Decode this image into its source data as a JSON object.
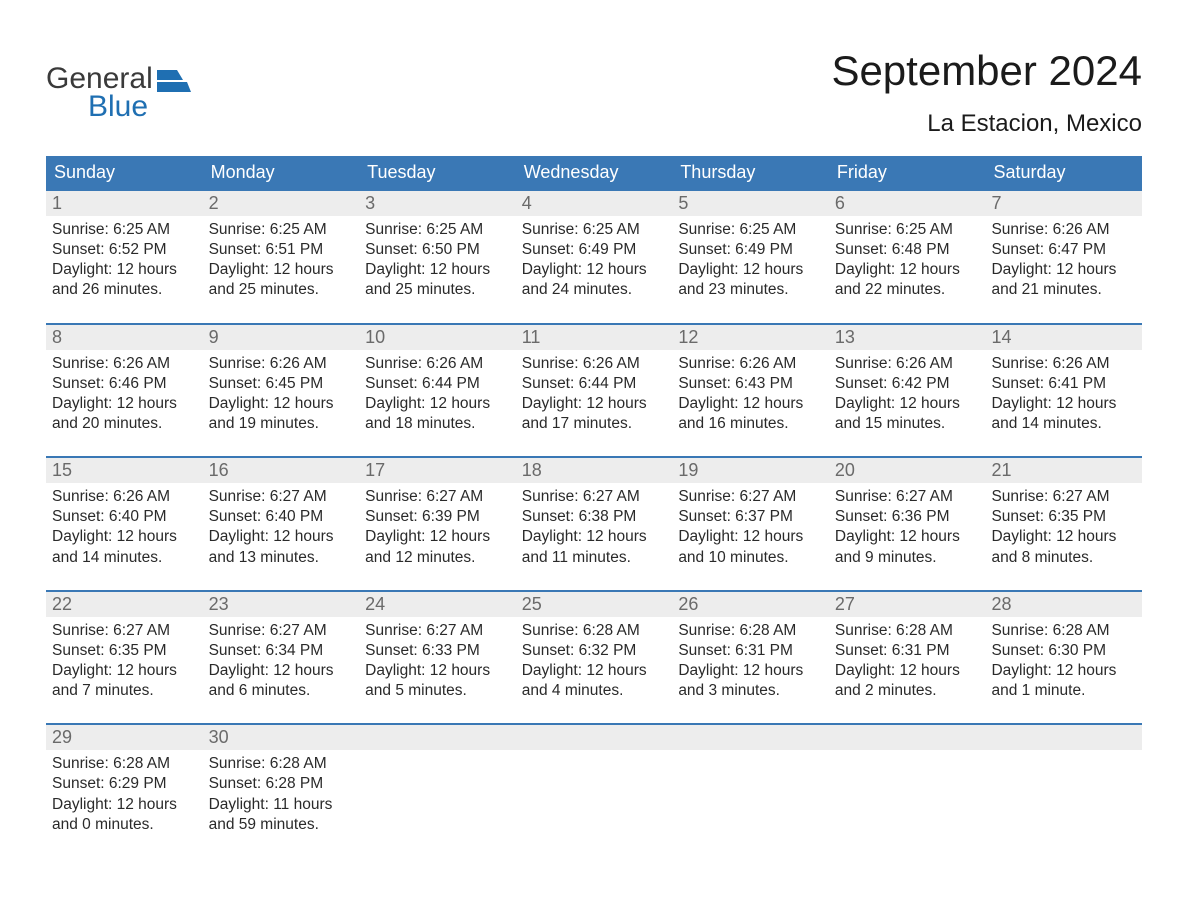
{
  "brand": {
    "top": "General",
    "bottom": "Blue",
    "top_color": "#3a3a3a",
    "bottom_color": "#1f6fb2"
  },
  "title": "September 2024",
  "location": "La Estacion, Mexico",
  "colors": {
    "header_bg": "#3a78b5",
    "header_text": "#ffffff",
    "week_border": "#3a78b5",
    "daynum_bg": "#ededed",
    "daynum_text": "#6a6a6a",
    "body_text": "#2a2a2a",
    "page_bg": "#ffffff"
  },
  "typography": {
    "title_fontsize": 42,
    "location_fontsize": 24,
    "weekday_fontsize": 18,
    "daynum_fontsize": 18,
    "body_fontsize": 15.5
  },
  "weekdays": [
    "Sunday",
    "Monday",
    "Tuesday",
    "Wednesday",
    "Thursday",
    "Friday",
    "Saturday"
  ],
  "weeks": [
    [
      {
        "n": "1",
        "sunrise": "Sunrise: 6:25 AM",
        "sunset": "Sunset: 6:52 PM",
        "d1": "Daylight: 12 hours",
        "d2": "and 26 minutes."
      },
      {
        "n": "2",
        "sunrise": "Sunrise: 6:25 AM",
        "sunset": "Sunset: 6:51 PM",
        "d1": "Daylight: 12 hours",
        "d2": "and 25 minutes."
      },
      {
        "n": "3",
        "sunrise": "Sunrise: 6:25 AM",
        "sunset": "Sunset: 6:50 PM",
        "d1": "Daylight: 12 hours",
        "d2": "and 25 minutes."
      },
      {
        "n": "4",
        "sunrise": "Sunrise: 6:25 AM",
        "sunset": "Sunset: 6:49 PM",
        "d1": "Daylight: 12 hours",
        "d2": "and 24 minutes."
      },
      {
        "n": "5",
        "sunrise": "Sunrise: 6:25 AM",
        "sunset": "Sunset: 6:49 PM",
        "d1": "Daylight: 12 hours",
        "d2": "and 23 minutes."
      },
      {
        "n": "6",
        "sunrise": "Sunrise: 6:25 AM",
        "sunset": "Sunset: 6:48 PM",
        "d1": "Daylight: 12 hours",
        "d2": "and 22 minutes."
      },
      {
        "n": "7",
        "sunrise": "Sunrise: 6:26 AM",
        "sunset": "Sunset: 6:47 PM",
        "d1": "Daylight: 12 hours",
        "d2": "and 21 minutes."
      }
    ],
    [
      {
        "n": "8",
        "sunrise": "Sunrise: 6:26 AM",
        "sunset": "Sunset: 6:46 PM",
        "d1": "Daylight: 12 hours",
        "d2": "and 20 minutes."
      },
      {
        "n": "9",
        "sunrise": "Sunrise: 6:26 AM",
        "sunset": "Sunset: 6:45 PM",
        "d1": "Daylight: 12 hours",
        "d2": "and 19 minutes."
      },
      {
        "n": "10",
        "sunrise": "Sunrise: 6:26 AM",
        "sunset": "Sunset: 6:44 PM",
        "d1": "Daylight: 12 hours",
        "d2": "and 18 minutes."
      },
      {
        "n": "11",
        "sunrise": "Sunrise: 6:26 AM",
        "sunset": "Sunset: 6:44 PM",
        "d1": "Daylight: 12 hours",
        "d2": "and 17 minutes."
      },
      {
        "n": "12",
        "sunrise": "Sunrise: 6:26 AM",
        "sunset": "Sunset: 6:43 PM",
        "d1": "Daylight: 12 hours",
        "d2": "and 16 minutes."
      },
      {
        "n": "13",
        "sunrise": "Sunrise: 6:26 AM",
        "sunset": "Sunset: 6:42 PM",
        "d1": "Daylight: 12 hours",
        "d2": "and 15 minutes."
      },
      {
        "n": "14",
        "sunrise": "Sunrise: 6:26 AM",
        "sunset": "Sunset: 6:41 PM",
        "d1": "Daylight: 12 hours",
        "d2": "and 14 minutes."
      }
    ],
    [
      {
        "n": "15",
        "sunrise": "Sunrise: 6:26 AM",
        "sunset": "Sunset: 6:40 PM",
        "d1": "Daylight: 12 hours",
        "d2": "and 14 minutes."
      },
      {
        "n": "16",
        "sunrise": "Sunrise: 6:27 AM",
        "sunset": "Sunset: 6:40 PM",
        "d1": "Daylight: 12 hours",
        "d2": "and 13 minutes."
      },
      {
        "n": "17",
        "sunrise": "Sunrise: 6:27 AM",
        "sunset": "Sunset: 6:39 PM",
        "d1": "Daylight: 12 hours",
        "d2": "and 12 minutes."
      },
      {
        "n": "18",
        "sunrise": "Sunrise: 6:27 AM",
        "sunset": "Sunset: 6:38 PM",
        "d1": "Daylight: 12 hours",
        "d2": "and 11 minutes."
      },
      {
        "n": "19",
        "sunrise": "Sunrise: 6:27 AM",
        "sunset": "Sunset: 6:37 PM",
        "d1": "Daylight: 12 hours",
        "d2": "and 10 minutes."
      },
      {
        "n": "20",
        "sunrise": "Sunrise: 6:27 AM",
        "sunset": "Sunset: 6:36 PM",
        "d1": "Daylight: 12 hours",
        "d2": "and 9 minutes."
      },
      {
        "n": "21",
        "sunrise": "Sunrise: 6:27 AM",
        "sunset": "Sunset: 6:35 PM",
        "d1": "Daylight: 12 hours",
        "d2": "and 8 minutes."
      }
    ],
    [
      {
        "n": "22",
        "sunrise": "Sunrise: 6:27 AM",
        "sunset": "Sunset: 6:35 PM",
        "d1": "Daylight: 12 hours",
        "d2": "and 7 minutes."
      },
      {
        "n": "23",
        "sunrise": "Sunrise: 6:27 AM",
        "sunset": "Sunset: 6:34 PM",
        "d1": "Daylight: 12 hours",
        "d2": "and 6 minutes."
      },
      {
        "n": "24",
        "sunrise": "Sunrise: 6:27 AM",
        "sunset": "Sunset: 6:33 PM",
        "d1": "Daylight: 12 hours",
        "d2": "and 5 minutes."
      },
      {
        "n": "25",
        "sunrise": "Sunrise: 6:28 AM",
        "sunset": "Sunset: 6:32 PM",
        "d1": "Daylight: 12 hours",
        "d2": "and 4 minutes."
      },
      {
        "n": "26",
        "sunrise": "Sunrise: 6:28 AM",
        "sunset": "Sunset: 6:31 PM",
        "d1": "Daylight: 12 hours",
        "d2": "and 3 minutes."
      },
      {
        "n": "27",
        "sunrise": "Sunrise: 6:28 AM",
        "sunset": "Sunset: 6:31 PM",
        "d1": "Daylight: 12 hours",
        "d2": "and 2 minutes."
      },
      {
        "n": "28",
        "sunrise": "Sunrise: 6:28 AM",
        "sunset": "Sunset: 6:30 PM",
        "d1": "Daylight: 12 hours",
        "d2": "and 1 minute."
      }
    ],
    [
      {
        "n": "29",
        "sunrise": "Sunrise: 6:28 AM",
        "sunset": "Sunset: 6:29 PM",
        "d1": "Daylight: 12 hours",
        "d2": "and 0 minutes."
      },
      {
        "n": "30",
        "sunrise": "Sunrise: 6:28 AM",
        "sunset": "Sunset: 6:28 PM",
        "d1": "Daylight: 11 hours",
        "d2": "and 59 minutes."
      },
      {
        "n": "",
        "empty": true
      },
      {
        "n": "",
        "empty": true
      },
      {
        "n": "",
        "empty": true
      },
      {
        "n": "",
        "empty": true
      },
      {
        "n": "",
        "empty": true
      }
    ]
  ]
}
